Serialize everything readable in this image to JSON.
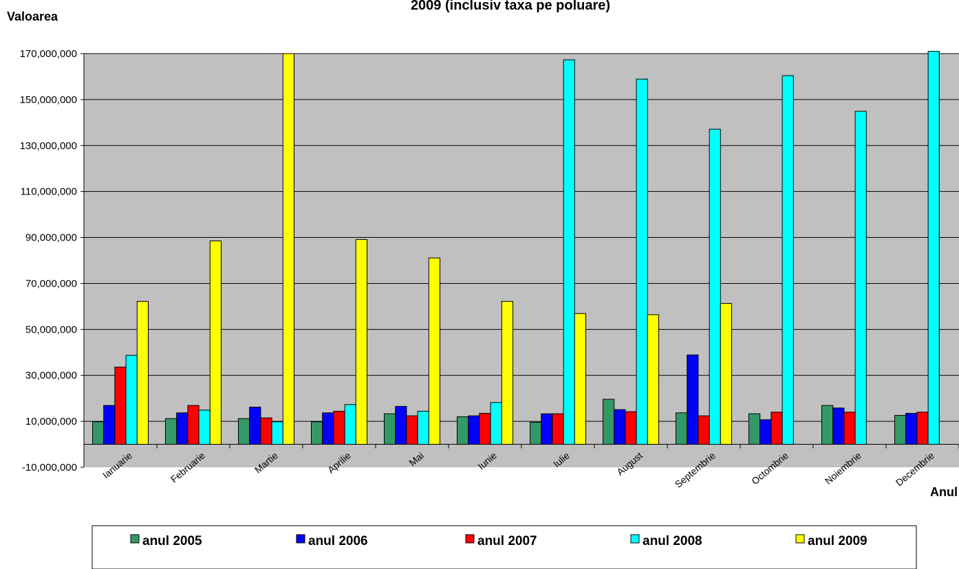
{
  "chart_data": {
    "type": "bar",
    "title": "2009 (inclusiv taxa pe poluare)",
    "ylabel": "Valoarea",
    "xlabel": "Anul",
    "ylim": [
      -10000000,
      170000000
    ],
    "yticks": [
      -10000000,
      10000000,
      30000000,
      50000000,
      70000000,
      90000000,
      110000000,
      130000000,
      150000000,
      170000000
    ],
    "ytick_labels": [
      "-10,000,000",
      "10,000,000",
      "30,000,000",
      "50,000,000",
      "70,000,000",
      "90,000,000",
      "110,000,000",
      "130,000,000",
      "150,000,000",
      "170,000,000"
    ],
    "grid": true,
    "legend_position": "bottom",
    "plot_background": "#c0c0c0",
    "categories": [
      "Ianuarie",
      "Februarie",
      "Martie",
      "Aprilie",
      "Mai",
      "Iunie",
      "Iulie",
      "August",
      "Septembrie",
      "Octombrie",
      "Noiembrie",
      "Decembrie"
    ],
    "series": [
      {
        "name": "anul 2005",
        "color": "#339966",
        "values": [
          9800000,
          11200000,
          11200000,
          9800000,
          13300000,
          12000000,
          9600000,
          19600000,
          13700000,
          13300000,
          16900000,
          12600000
        ]
      },
      {
        "name": "anul 2006",
        "color": "#0000ff",
        "values": [
          16900000,
          13700000,
          16200000,
          13700000,
          16500000,
          12400000,
          13300000,
          15100000,
          38900000,
          10700000,
          15800000,
          13500000
        ]
      },
      {
        "name": "anul 2007",
        "color": "#ff0000",
        "values": [
          33600000,
          16900000,
          11500000,
          14400000,
          12400000,
          13500000,
          13300000,
          14200000,
          12400000,
          14000000,
          14000000,
          14000000
        ]
      },
      {
        "name": "anul 2008",
        "color": "#00ffff",
        "values": [
          38700000,
          14900000,
          9800000,
          17300000,
          14400000,
          18200000,
          167300000,
          158900000,
          137100000,
          160400000,
          144900000,
          171000000
        ]
      },
      {
        "name": "anul 2009",
        "color": "#ffff00",
        "values": [
          62200000,
          88500000,
          170000000,
          89100000,
          81100000,
          62200000,
          56900000,
          56400000,
          61300000,
          null,
          null,
          null
        ]
      }
    ]
  }
}
